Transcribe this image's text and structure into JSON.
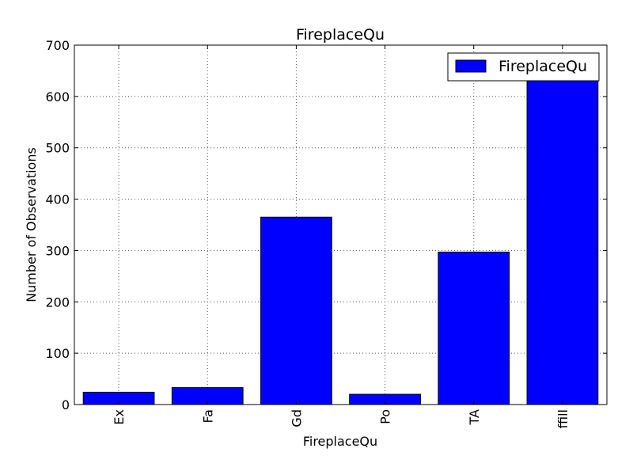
{
  "chart_data": {
    "type": "bar",
    "title": "FireplaceQu",
    "xlabel": "FireplaceQu",
    "ylabel": "Number of Observations",
    "categories": [
      "Ex",
      "Fa",
      "Gd",
      "Po",
      "TA",
      "ffill"
    ],
    "series": [
      {
        "name": "FireplaceQu",
        "values": [
          24,
          33,
          365,
          20,
          297,
          665
        ]
      }
    ],
    "ylim": [
      0,
      700
    ],
    "yticks": [
      0,
      100,
      200,
      300,
      400,
      500,
      600,
      700
    ],
    "ytick_labels": [
      "0",
      "100",
      "200",
      "300",
      "400",
      "500",
      "600",
      "700"
    ],
    "xtick_rotation": "vertical",
    "grid": true,
    "legend_position": "top-right",
    "colors": {
      "bar": "#0000ff",
      "bar_edge": "#000000",
      "grid": "#555555"
    }
  }
}
